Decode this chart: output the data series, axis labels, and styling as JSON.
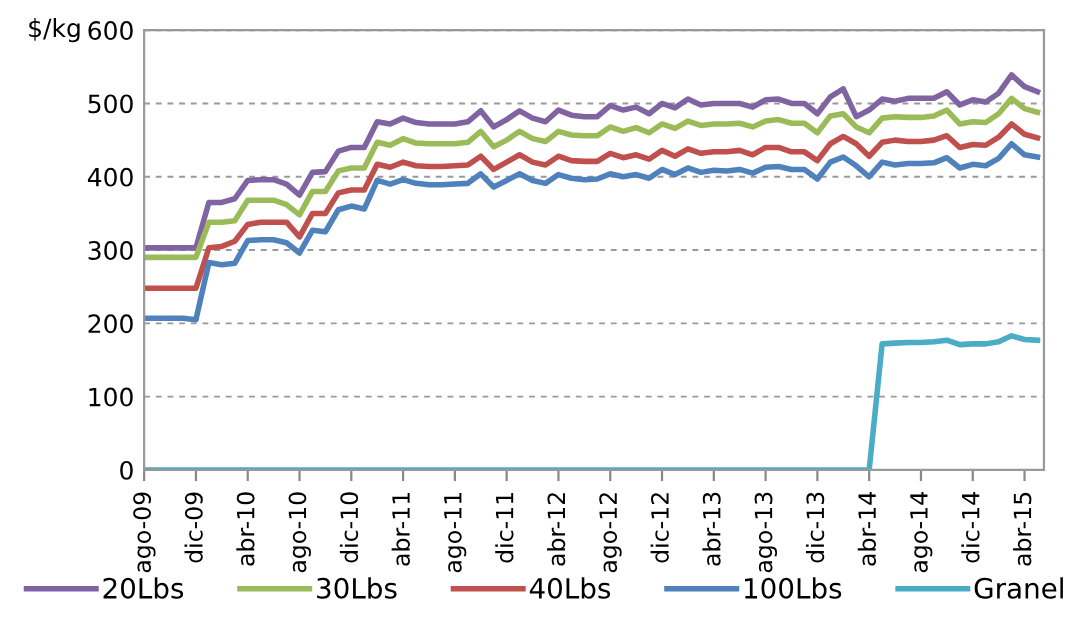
{
  "chart_data": {
    "type": "line",
    "ylabel": "$/kg",
    "categories": [
      "ago-09",
      null,
      null,
      null,
      "dic-09",
      null,
      null,
      null,
      "abr-10",
      null,
      null,
      null,
      "ago-10",
      null,
      null,
      null,
      "dic-10",
      null,
      null,
      null,
      "abr-11",
      null,
      null,
      null,
      "ago-11",
      null,
      null,
      null,
      "dic-11",
      null,
      null,
      null,
      "abr-12",
      null,
      null,
      null,
      "ago-12",
      null,
      null,
      null,
      "dic-12",
      null,
      null,
      null,
      "abr-13",
      null,
      null,
      null,
      "ago-13",
      null,
      null,
      null,
      "dic-13",
      null,
      null,
      null,
      "abr-14",
      null,
      null,
      null,
      "ago-14",
      null,
      null,
      null,
      "dic-14",
      null,
      null,
      null,
      "abr-15",
      null
    ],
    "series": [
      {
        "name": "20Lbs",
        "color": "#8064a2",
        "values": [
          303,
          303,
          303,
          303,
          303,
          365,
          365,
          370,
          395,
          396,
          396,
          390,
          375,
          406,
          407,
          435,
          440,
          440,
          475,
          472,
          480,
          474,
          472,
          472,
          472,
          475,
          490,
          468,
          478,
          490,
          480,
          475,
          491,
          484,
          482,
          482,
          497,
          491,
          495,
          486,
          500,
          494,
          506,
          498,
          500,
          500,
          500,
          495,
          505,
          506,
          500,
          500,
          486,
          509,
          520,
          482,
          491,
          506,
          503,
          507,
          507,
          507,
          516,
          498,
          505,
          502,
          514,
          539,
          523,
          516
        ]
      },
      {
        "name": "30Lbs",
        "color": "#9bbb59",
        "values": [
          290,
          290,
          290,
          290,
          290,
          338,
          338,
          340,
          368,
          368,
          368,
          362,
          348,
          380,
          380,
          408,
          412,
          412,
          447,
          443,
          452,
          446,
          445,
          445,
          445,
          447,
          462,
          441,
          450,
          462,
          452,
          448,
          462,
          457,
          456,
          456,
          468,
          462,
          467,
          460,
          472,
          466,
          476,
          470,
          472,
          472,
          473,
          468,
          476,
          478,
          473,
          473,
          460,
          483,
          486,
          468,
          460,
          480,
          482,
          481,
          481,
          483,
          491,
          472,
          475,
          474,
          486,
          507,
          493,
          488
        ]
      },
      {
        "name": "40Lbs",
        "color": "#c0504d",
        "values": [
          248,
          248,
          248,
          248,
          248,
          303,
          305,
          312,
          335,
          338,
          338,
          338,
          318,
          350,
          350,
          378,
          382,
          382,
          417,
          413,
          420,
          415,
          414,
          414,
          415,
          416,
          428,
          410,
          420,
          430,
          420,
          416,
          428,
          422,
          421,
          421,
          432,
          426,
          430,
          424,
          436,
          428,
          438,
          432,
          434,
          434,
          436,
          430,
          440,
          440,
          434,
          434,
          422,
          445,
          455,
          445,
          428,
          447,
          450,
          448,
          448,
          450,
          456,
          440,
          444,
          443,
          454,
          472,
          458,
          453
        ]
      },
      {
        "name": "100Lbs",
        "color": "#4f81bd",
        "values": [
          207,
          207,
          207,
          207,
          205,
          283,
          280,
          282,
          313,
          314,
          314,
          310,
          296,
          327,
          325,
          355,
          360,
          356,
          395,
          390,
          396,
          391,
          389,
          389,
          390,
          391,
          404,
          386,
          395,
          404,
          395,
          391,
          403,
          398,
          396,
          397,
          404,
          400,
          403,
          398,
          410,
          403,
          412,
          406,
          409,
          408,
          410,
          405,
          413,
          414,
          410,
          410,
          397,
          420,
          427,
          415,
          400,
          420,
          416,
          418,
          418,
          419,
          426,
          412,
          417,
          415,
          425,
          445,
          430,
          427
        ]
      },
      {
        "name": "Granel",
        "color": "#4bacc6",
        "values": [
          0,
          0,
          0,
          0,
          0,
          0,
          0,
          0,
          0,
          0,
          0,
          0,
          0,
          0,
          0,
          0,
          0,
          0,
          0,
          0,
          0,
          0,
          0,
          0,
          0,
          0,
          0,
          0,
          0,
          0,
          0,
          0,
          0,
          0,
          0,
          0,
          0,
          0,
          0,
          0,
          0,
          0,
          0,
          0,
          0,
          0,
          0,
          0,
          0,
          0,
          0,
          0,
          0,
          0,
          0,
          0,
          0,
          172,
          173,
          174,
          174,
          175,
          177,
          171,
          172,
          172,
          175,
          183,
          178,
          177
        ]
      }
    ],
    "ylim": [
      0,
      600
    ],
    "yticks": [
      0,
      100,
      200,
      300,
      400,
      500,
      600
    ],
    "grid": "y",
    "legend": "bottom",
    "marker": "none",
    "line_style": "solid"
  }
}
